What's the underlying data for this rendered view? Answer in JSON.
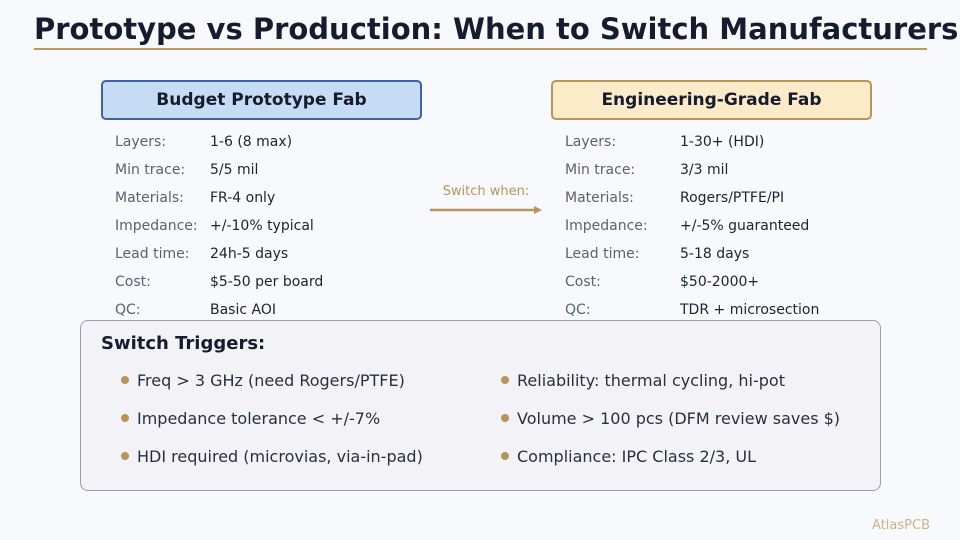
{
  "title": "Prototype vs Production: When to Switch Manufacturers",
  "colors": {
    "accent_gold": "#b5955c",
    "prototype_fill": "#c6dcf4",
    "prototype_border": "#3f62a8",
    "engineering_fill": "#fbebc9",
    "engineering_border": "#b5955c"
  },
  "prototype": {
    "header": "Budget Prototype Fab",
    "specs": [
      {
        "label": "Layers:",
        "value": "1-6 (8 max)"
      },
      {
        "label": "Min trace:",
        "value": "5/5 mil"
      },
      {
        "label": "Materials:",
        "value": "FR-4 only"
      },
      {
        "label": "Impedance:",
        "value": "+/-10% typical"
      },
      {
        "label": "Lead time:",
        "value": "24h-5 days"
      },
      {
        "label": "Cost:",
        "value": "$5-50 per board"
      },
      {
        "label": "QC:",
        "value": "Basic AOI"
      }
    ]
  },
  "engineering": {
    "header": "Engineering-Grade Fab",
    "specs": [
      {
        "label": "Layers:",
        "value": "1-30+ (HDI)"
      },
      {
        "label": "Min trace:",
        "value": "3/3 mil"
      },
      {
        "label": "Materials:",
        "value": "Rogers/PTFE/PI"
      },
      {
        "label": "Impedance:",
        "value": "+/-5% guaranteed"
      },
      {
        "label": "Lead time:",
        "value": "5-18 days"
      },
      {
        "label": "Cost:",
        "value": "$50-2000+"
      },
      {
        "label": "QC:",
        "value": "TDR + microsection"
      }
    ]
  },
  "switch_label": "Switch when:",
  "triggers": {
    "title": "Switch Triggers:",
    "left": [
      "Freq > 3 GHz (need Rogers/PTFE)",
      "Impedance tolerance < +/-7%",
      "HDI required (microvias, via-in-pad)"
    ],
    "right": [
      "Reliability: thermal cycling, hi-pot",
      "Volume > 100 pcs (DFM review saves $)",
      "Compliance: IPC Class 2/3, UL"
    ]
  },
  "brand": "AtlasPCB"
}
